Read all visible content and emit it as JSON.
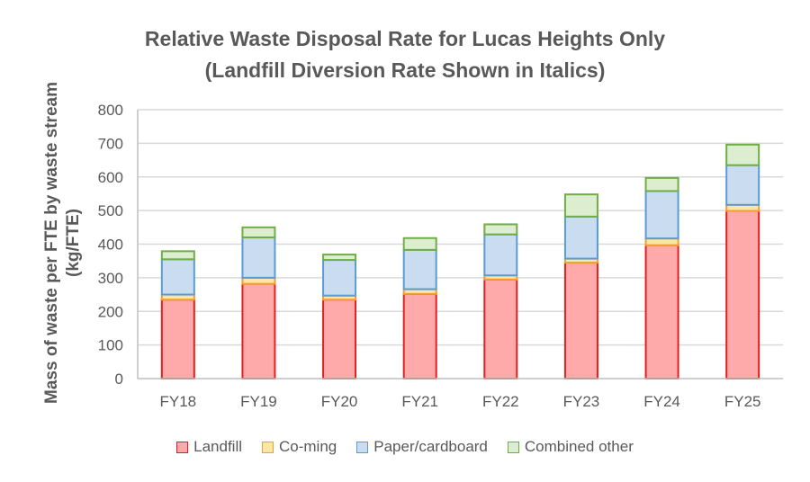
{
  "chart_data": {
    "type": "bar",
    "stacked": true,
    "title": [
      "Relative Waste Disposal Rate for Lucas Heights Only",
      "(Landfill Diversion Rate Shown in Italics)"
    ],
    "xlabel": "",
    "ylabel": [
      "Mass of waste per FTE by waste stream",
      "(kg/FTE)"
    ],
    "ylim": [
      0,
      800
    ],
    "yticks": [
      0,
      100,
      200,
      300,
      400,
      500,
      600,
      700,
      800
    ],
    "grid": true,
    "legend_position": "bottom",
    "categories": [
      "FY18",
      "FY19",
      "FY20",
      "FY21",
      "FY22",
      "FY23",
      "FY24",
      "FY25"
    ],
    "series": [
      {
        "name": "Landfill",
        "fill": "#ffaaaa",
        "stroke": "#e02020",
        "values": [
          235,
          282,
          235,
          252,
          295,
          345,
          397,
          499
        ]
      },
      {
        "name": "Co-ming",
        "fill": "#ffe6a8",
        "stroke": "#f0a030",
        "values": [
          15,
          18,
          12,
          14,
          12,
          12,
          20,
          18
        ]
      },
      {
        "name": "Paper/cardboard",
        "fill": "#c9dcf0",
        "stroke": "#5b9bd5",
        "values": [
          105,
          120,
          106,
          117,
          122,
          125,
          141,
          118
        ]
      },
      {
        "name": "Combined other",
        "fill": "#dcedd0",
        "stroke": "#70ad47",
        "values": [
          24,
          30,
          16,
          35,
          30,
          66,
          39,
          61
        ]
      }
    ]
  }
}
